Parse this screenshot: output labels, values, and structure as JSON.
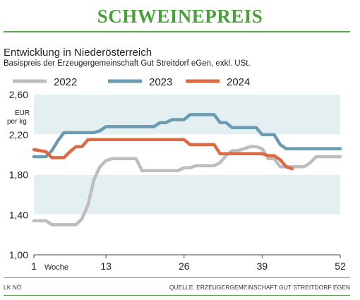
{
  "header": {
    "title": "SCHWEINEPREIS",
    "subtitle": "Entwicklung in Niederösterreich",
    "note": "Basispreis der Erzeugergemeinschaft Gut Streitdorf eGen, exkl. USt."
  },
  "footer": {
    "left": "LK NÖ",
    "right": "QUELLE: ERZEUGERGEMEINSCHAFT GUT STREITDORF EGEN"
  },
  "chart_data": {
    "type": "line",
    "unit_label": [
      "EUR",
      "per kg"
    ],
    "xlabel": "Woche",
    "x_ticks": [
      1,
      13,
      26,
      39,
      52
    ],
    "x_tick_labels": [
      "1",
      "13",
      "26",
      "39",
      "52"
    ],
    "xlim": [
      1,
      52
    ],
    "y_ticks": [
      1.0,
      1.4,
      1.8,
      2.2,
      2.6
    ],
    "y_tick_labels": [
      "1,00",
      "1,40",
      "1,80",
      "2,20",
      "2,60"
    ],
    "ylim": [
      1.0,
      2.6
    ],
    "legend_position": "top",
    "series": [
      {
        "name": "2022",
        "color": "#bdbdbd",
        "points": [
          [
            1,
            1.34
          ],
          [
            2,
            1.34
          ],
          [
            3,
            1.34
          ],
          [
            4,
            1.3
          ],
          [
            5,
            1.3
          ],
          [
            6,
            1.3
          ],
          [
            7,
            1.3
          ],
          [
            8,
            1.3
          ],
          [
            9,
            1.36
          ],
          [
            10,
            1.5
          ],
          [
            11,
            1.75
          ],
          [
            12,
            1.88
          ],
          [
            13,
            1.94
          ],
          [
            14,
            1.96
          ],
          [
            15,
            1.96
          ],
          [
            16,
            1.96
          ],
          [
            17,
            1.96
          ],
          [
            18,
            1.96
          ],
          [
            19,
            1.84
          ],
          [
            20,
            1.84
          ],
          [
            21,
            1.84
          ],
          [
            22,
            1.84
          ],
          [
            23,
            1.84
          ],
          [
            24,
            1.84
          ],
          [
            25,
            1.84
          ],
          [
            26,
            1.87
          ],
          [
            27,
            1.87
          ],
          [
            28,
            1.89
          ],
          [
            29,
            1.89
          ],
          [
            30,
            1.89
          ],
          [
            31,
            1.89
          ],
          [
            32,
            1.92
          ],
          [
            33,
            1.99
          ],
          [
            34,
            2.04
          ],
          [
            35,
            2.04
          ],
          [
            36,
            2.06
          ],
          [
            37,
            2.08
          ],
          [
            38,
            2.08
          ],
          [
            39,
            2.06
          ],
          [
            40,
            1.96
          ],
          [
            41,
            1.96
          ],
          [
            42,
            1.88
          ],
          [
            43,
            1.88
          ],
          [
            44,
            1.88
          ],
          [
            45,
            1.88
          ],
          [
            46,
            1.88
          ],
          [
            47,
            1.92
          ],
          [
            48,
            1.98
          ],
          [
            49,
            1.98
          ],
          [
            50,
            1.98
          ],
          [
            51,
            1.98
          ],
          [
            52,
            1.98
          ]
        ]
      },
      {
        "name": "2023",
        "color": "#6a9bb1",
        "points": [
          [
            1,
            1.98
          ],
          [
            2,
            1.98
          ],
          [
            3,
            1.98
          ],
          [
            4,
            2.04
          ],
          [
            5,
            2.14
          ],
          [
            6,
            2.22
          ],
          [
            7,
            2.22
          ],
          [
            8,
            2.22
          ],
          [
            9,
            2.22
          ],
          [
            10,
            2.22
          ],
          [
            11,
            2.22
          ],
          [
            12,
            2.24
          ],
          [
            13,
            2.28
          ],
          [
            14,
            2.28
          ],
          [
            15,
            2.28
          ],
          [
            16,
            2.28
          ],
          [
            17,
            2.28
          ],
          [
            18,
            2.28
          ],
          [
            19,
            2.28
          ],
          [
            20,
            2.28
          ],
          [
            21,
            2.28
          ],
          [
            22,
            2.32
          ],
          [
            23,
            2.32
          ],
          [
            24,
            2.35
          ],
          [
            25,
            2.35
          ],
          [
            26,
            2.35
          ],
          [
            27,
            2.4
          ],
          [
            28,
            2.4
          ],
          [
            29,
            2.4
          ],
          [
            30,
            2.4
          ],
          [
            31,
            2.4
          ],
          [
            32,
            2.32
          ],
          [
            33,
            2.32
          ],
          [
            34,
            2.27
          ],
          [
            35,
            2.27
          ],
          [
            36,
            2.27
          ],
          [
            37,
            2.27
          ],
          [
            38,
            2.27
          ],
          [
            39,
            2.2
          ],
          [
            40,
            2.2
          ],
          [
            41,
            2.2
          ],
          [
            42,
            2.1
          ],
          [
            43,
            2.06
          ],
          [
            44,
            2.06
          ],
          [
            45,
            2.06
          ],
          [
            46,
            2.06
          ],
          [
            47,
            2.06
          ],
          [
            48,
            2.06
          ],
          [
            49,
            2.06
          ],
          [
            50,
            2.06
          ],
          [
            51,
            2.06
          ],
          [
            52,
            2.06
          ]
        ]
      },
      {
        "name": "2024",
        "color": "#dd6a45",
        "points": [
          [
            1,
            2.05
          ],
          [
            2,
            2.04
          ],
          [
            3,
            2.03
          ],
          [
            4,
            1.97
          ],
          [
            5,
            1.97
          ],
          [
            6,
            1.97
          ],
          [
            7,
            2.03
          ],
          [
            8,
            2.08
          ],
          [
            9,
            2.08
          ],
          [
            10,
            2.15
          ],
          [
            11,
            2.15
          ],
          [
            12,
            2.15
          ],
          [
            13,
            2.15
          ],
          [
            14,
            2.15
          ],
          [
            15,
            2.15
          ],
          [
            16,
            2.15
          ],
          [
            17,
            2.15
          ],
          [
            18,
            2.15
          ],
          [
            19,
            2.15
          ],
          [
            20,
            2.15
          ],
          [
            21,
            2.15
          ],
          [
            22,
            2.15
          ],
          [
            23,
            2.15
          ],
          [
            24,
            2.15
          ],
          [
            25,
            2.15
          ],
          [
            26,
            2.15
          ],
          [
            27,
            2.1
          ],
          [
            28,
            2.1
          ],
          [
            29,
            2.1
          ],
          [
            30,
            2.1
          ],
          [
            31,
            2.1
          ],
          [
            32,
            2.01
          ],
          [
            33,
            2.01
          ],
          [
            34,
            2.01
          ],
          [
            35,
            2.01
          ],
          [
            36,
            2.01
          ],
          [
            37,
            2.01
          ],
          [
            38,
            2.01
          ],
          [
            39,
            2.01
          ],
          [
            40,
            1.99
          ],
          [
            41,
            1.99
          ],
          [
            42,
            1.95
          ],
          [
            43,
            1.88
          ],
          [
            44,
            1.86
          ]
        ]
      }
    ]
  }
}
